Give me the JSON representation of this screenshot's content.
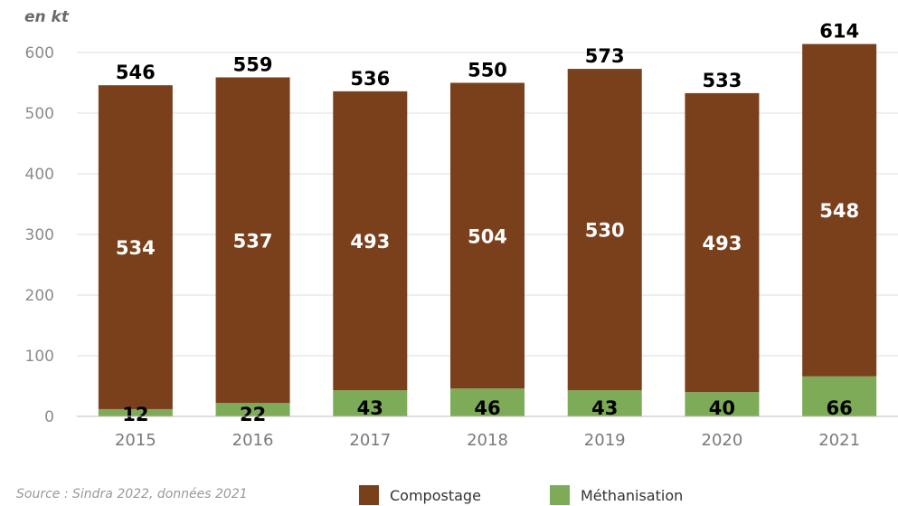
{
  "chart_data": {
    "type": "bar",
    "stacked": true,
    "unit_label": "en kt",
    "categories": [
      "2015",
      "2016",
      "2017",
      "2018",
      "2019",
      "2020",
      "2021"
    ],
    "series": [
      {
        "name": "Méthanisation",
        "values": [
          12,
          22,
          43,
          46,
          43,
          40,
          66
        ],
        "color": "#7dab58"
      },
      {
        "name": "Compostage",
        "values": [
          534,
          537,
          493,
          504,
          530,
          493,
          548
        ],
        "color": "#7a401c"
      }
    ],
    "totals": [
      546,
      559,
      536,
      550,
      573,
      533,
      614
    ],
    "ylim": [
      0,
      600
    ],
    "yticks": [
      0,
      100,
      200,
      300,
      400,
      500,
      600
    ],
    "grid": true,
    "legend_position": "bottom",
    "xlabel": "",
    "ylabel": ""
  },
  "source": "Source : Sindra 2022, données 2021"
}
